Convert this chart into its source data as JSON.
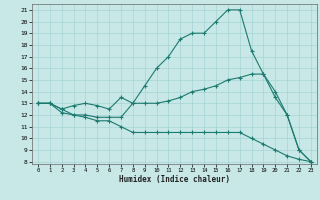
{
  "x": [
    0,
    1,
    2,
    3,
    4,
    5,
    6,
    7,
    8,
    9,
    10,
    11,
    12,
    13,
    14,
    15,
    16,
    17,
    18,
    19,
    20,
    21,
    22,
    23
  ],
  "y_max": [
    13,
    13,
    12.2,
    12,
    12,
    11.8,
    11.8,
    11.8,
    13,
    14.5,
    16,
    17,
    18.5,
    19,
    19,
    20,
    21,
    21,
    17.5,
    15.5,
    13.5,
    12,
    9,
    8
  ],
  "y_mid": [
    13,
    13,
    12.5,
    12.8,
    13,
    12.8,
    12.5,
    13.5,
    13,
    13,
    13,
    13.2,
    13.5,
    14,
    14.2,
    14.5,
    15,
    15.2,
    15.5,
    15.5,
    14,
    12,
    9,
    8
  ],
  "y_min": [
    13,
    13,
    12.5,
    12,
    11.8,
    11.5,
    11.5,
    11,
    10.5,
    10.5,
    10.5,
    10.5,
    10.5,
    10.5,
    10.5,
    10.5,
    10.5,
    10.5,
    10,
    9.5,
    9,
    8.5,
    8.2,
    8
  ],
  "line_color": "#1a7a6e",
  "bg_color": "#c8e8e8",
  "grid_color": "#9ecece",
  "xlabel": "Humidex (Indice chaleur)",
  "xlim": [
    -0.5,
    23.5
  ],
  "ylim": [
    7.8,
    21.5
  ],
  "yticks": [
    8,
    9,
    10,
    11,
    12,
    13,
    14,
    15,
    16,
    17,
    18,
    19,
    20,
    21
  ],
  "xticks": [
    0,
    1,
    2,
    3,
    4,
    5,
    6,
    7,
    8,
    9,
    10,
    11,
    12,
    13,
    14,
    15,
    16,
    17,
    18,
    19,
    20,
    21,
    22,
    23
  ]
}
